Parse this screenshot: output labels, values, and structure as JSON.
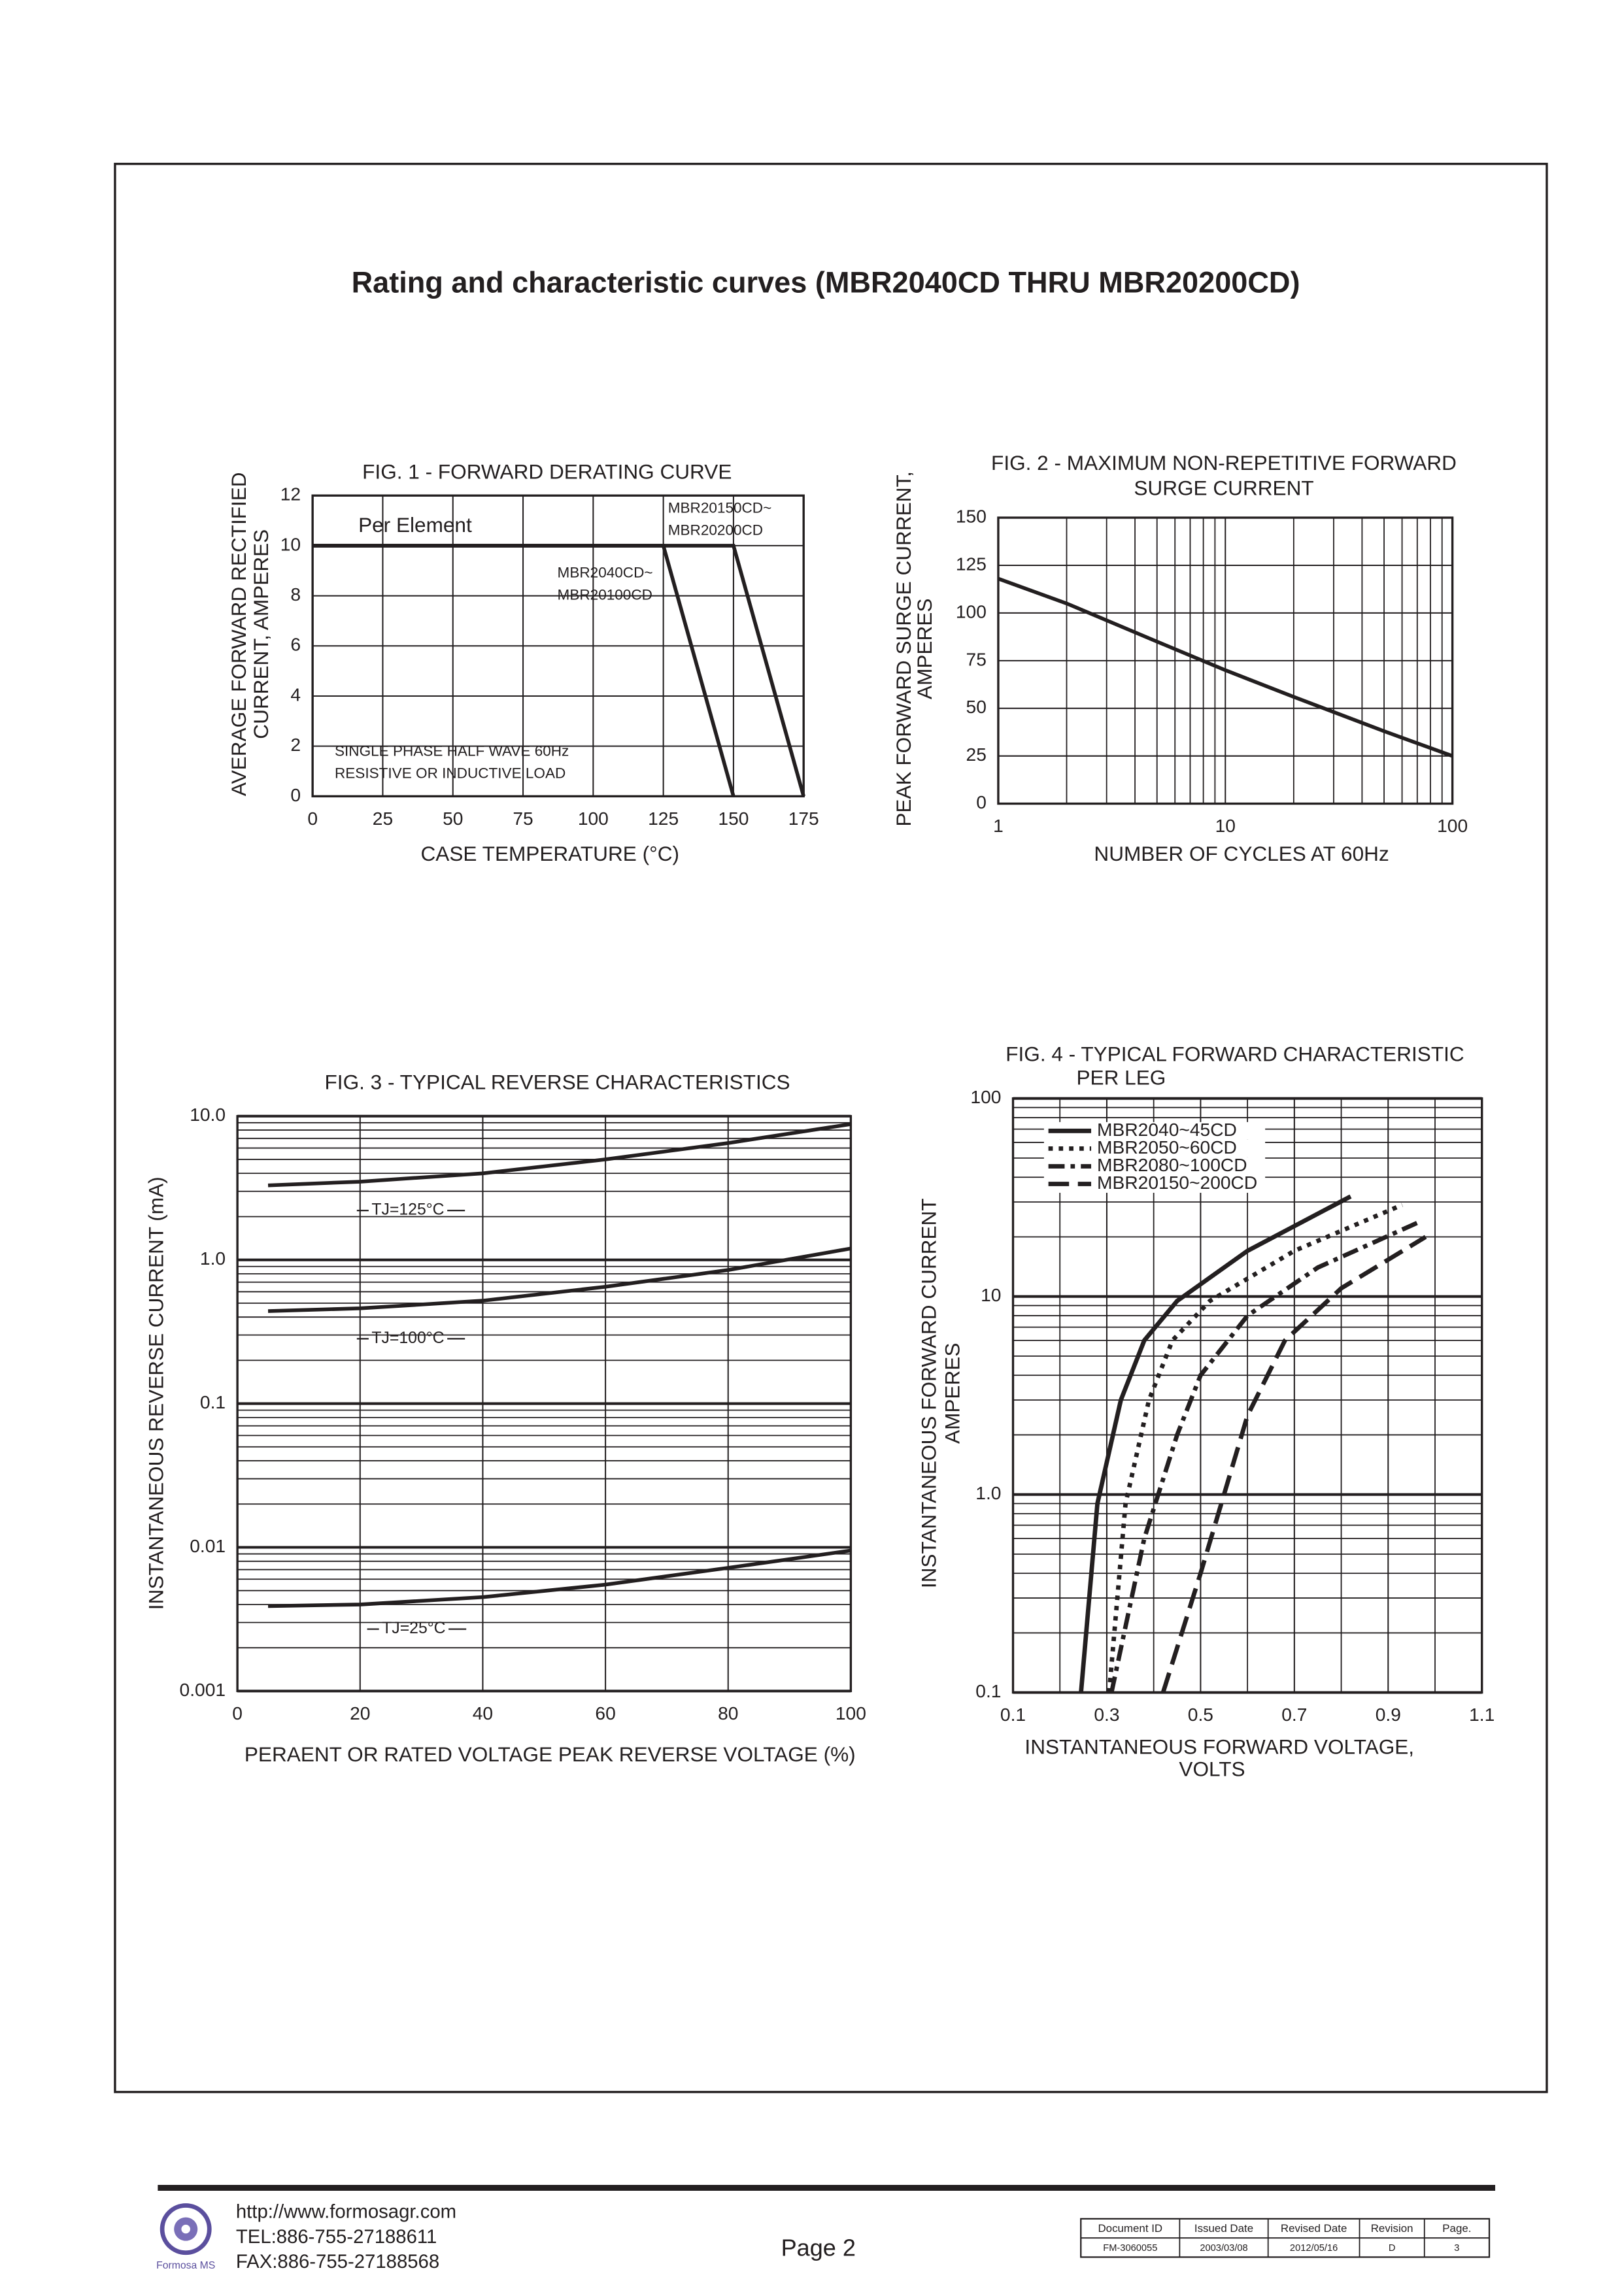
{
  "title": "Rating and characteristic curves (MBR2040CD THRU MBR20200CD)",
  "chart_data": [
    {
      "type": "line",
      "title": [
        "FIG. 1 - FORWARD DERATING CURVE"
      ],
      "xlabel": [
        "CASE TEMPERATURE (°C)"
      ],
      "ylabel": [
        "AVERAGE FORWARD RECTIFIED",
        "CURRENT, AMPERES"
      ],
      "xlim": [
        0,
        175
      ],
      "xticks": [
        0,
        25,
        50,
        75,
        100,
        125,
        150,
        175
      ],
      "ylim": [
        0,
        12
      ],
      "yticks": [
        0,
        2,
        4,
        6,
        8,
        10,
        12
      ],
      "xscale": "linear",
      "yscale": "linear",
      "grid": true,
      "annotations": [
        "Per Element",
        "SINGLE PHASE HALF WAVE 60Hz",
        "RESISTIVE OR INDUCTIVE LOAD"
      ],
      "series": [
        {
          "name_lines": [
            "MBR2040CD~",
            "MBR20100CD"
          ],
          "color": "#231f20",
          "dash": "solid",
          "x": [
            0,
            125,
            150
          ],
          "values": [
            10,
            10,
            0
          ]
        },
        {
          "name_lines": [
            "MBR20150CD~",
            "MBR20200CD"
          ],
          "color": "#231f20",
          "dash": "solid",
          "x": [
            0,
            150,
            175
          ],
          "values": [
            10,
            10,
            0
          ]
        }
      ]
    },
    {
      "type": "line",
      "title": [
        "FIG. 2 - MAXIMUM NON-REPETITIVE FORWARD",
        "SURGE CURRENT"
      ],
      "xlabel": [
        "NUMBER OF CYCLES AT 60Hz"
      ],
      "ylabel": [
        "PEAK FORWARD SURGE CURRENT,",
        "AMPERES"
      ],
      "xlim": [
        1,
        100
      ],
      "xticks": [
        1,
        10,
        100
      ],
      "ylim": [
        0,
        150
      ],
      "yticks": [
        0,
        25,
        50,
        75,
        100,
        125,
        150
      ],
      "xscale": "log",
      "yscale": "linear",
      "grid": true,
      "xgrid": [
        2,
        3,
        4,
        5,
        6,
        7,
        8,
        9,
        20,
        30,
        40,
        50,
        60,
        70,
        80,
        90
      ],
      "series": [
        {
          "color": "#231f20",
          "dash": "solid",
          "x": [
            1,
            2,
            5,
            10,
            20,
            50,
            100
          ],
          "values": [
            118,
            105,
            85,
            70,
            56,
            38,
            25
          ]
        }
      ]
    },
    {
      "type": "line",
      "title": [
        "FIG. 3 - TYPICAL REVERSE CHARACTERISTICS"
      ],
      "xlabel": [
        "PERAENT OR RATED VOLTAGE PEAK REVERSE VOLTAGE (%)"
      ],
      "ylabel": [
        "INSTANTANEOUS REVERSE CURRENT (mA)"
      ],
      "xlim": [
        0,
        100
      ],
      "xticks": [
        0,
        20,
        40,
        60,
        80,
        100
      ],
      "ylim": [
        0.001,
        10
      ],
      "yticks": [
        0.001,
        0.01,
        0.1,
        {
          "value": 1,
          "label": "1.0"
        },
        {
          "value": 10,
          "label": "10.0"
        }
      ],
      "xscale": "linear",
      "yscale": "log",
      "grid": true,
      "ygrid": [
        0.002,
        0.003,
        0.004,
        0.005,
        0.006,
        0.007,
        0.008,
        0.009,
        0.02,
        0.03,
        0.04,
        0.05,
        0.06,
        0.07,
        0.08,
        0.09,
        0.2,
        0.3,
        0.4,
        0.5,
        0.6,
        0.7,
        0.8,
        0.9,
        2,
        3,
        4,
        5,
        6,
        7,
        8,
        9
      ],
      "series": [
        {
          "name": "TJ=125°C",
          "color": "#231f20",
          "dash": "solid",
          "x": [
            5,
            20,
            40,
            60,
            80,
            100
          ],
          "values": [
            3.3,
            3.5,
            4.0,
            5.0,
            6.5,
            8.8
          ]
        },
        {
          "name": "TJ=100°C",
          "color": "#231f20",
          "dash": "solid",
          "x": [
            5,
            20,
            40,
            60,
            80,
            100
          ],
          "values": [
            0.44,
            0.46,
            0.52,
            0.65,
            0.85,
            1.2
          ]
        },
        {
          "name": "TJ=25°C",
          "color": "#231f20",
          "dash": "solid",
          "x": [
            5,
            20,
            40,
            60,
            80,
            100
          ],
          "values": [
            0.0039,
            0.004,
            0.0045,
            0.0055,
            0.0072,
            0.0095
          ]
        }
      ]
    },
    {
      "type": "line",
      "title": [
        "FIG. 4 - TYPICAL FORWARD CHARACTERISTIC",
        "PER LEG"
      ],
      "xlabel": [
        "INSTANTANEOUS FORWARD VOLTAGE,",
        "VOLTS"
      ],
      "ylabel": [
        "INSTANTANEOUS FORWARD CURRENT",
        "AMPERES"
      ],
      "xlim": [
        0.1,
        1.1
      ],
      "xticks": [
        0.1,
        0.3,
        0.5,
        0.7,
        0.9,
        1.1
      ],
      "ylim": [
        0.1,
        100
      ],
      "yticks": [
        0.1,
        {
          "value": 1,
          "label": "1.0"
        },
        10,
        100
      ],
      "xscale": "linear",
      "yscale": "log",
      "grid": true,
      "xgrid": [
        0.2,
        0.4,
        0.6,
        0.8,
        1.0
      ],
      "ygrid": [
        0.2,
        0.3,
        0.4,
        0.5,
        0.6,
        0.7,
        0.8,
        0.9,
        2,
        3,
        4,
        5,
        6,
        7,
        8,
        9,
        20,
        30,
        40,
        50,
        60,
        70,
        80,
        90
      ],
      "legend": "upper left",
      "series": [
        {
          "name": "MBR2040~45CD",
          "color": "#231f20",
          "dash": "solid",
          "x": [
            0.245,
            0.28,
            0.33,
            0.38,
            0.45,
            0.6,
            0.82
          ],
          "values": [
            0.1,
            0.9,
            3,
            6,
            9.5,
            17,
            32
          ]
        },
        {
          "name": "MBR2050~60CD",
          "color": "#231f20",
          "dash": "dotted",
          "x": [
            0.305,
            0.34,
            0.39,
            0.44,
            0.52,
            0.7,
            0.93
          ],
          "values": [
            0.1,
            0.9,
            3,
            6,
            9.5,
            17,
            29
          ]
        },
        {
          "name": "MBR2080~100CD",
          "color": "#231f20",
          "dash": "dashdot",
          "x": [
            0.31,
            0.38,
            0.45,
            0.5,
            0.6,
            0.75,
            0.97
          ],
          "values": [
            0.1,
            0.6,
            2,
            4,
            8,
            14,
            24
          ]
        },
        {
          "name": "MBR20150~200CD",
          "color": "#231f20",
          "dash": "dashed",
          "x": [
            0.42,
            0.5,
            0.55,
            0.6,
            0.68,
            0.8,
            0.98
          ],
          "values": [
            0.1,
            0.4,
            1,
            2.5,
            6,
            11,
            20
          ]
        }
      ]
    }
  ],
  "footer": {
    "logo_text": "Formosa MS",
    "url": "http://www.formosagr.com",
    "tel": "TEL:886-755-27188611",
    "fax": "FAX:886-755-27188568",
    "page": "Page 2",
    "table": {
      "headers": [
        "Document ID",
        "Issued Date",
        "Revised Date",
        "Revision",
        "Page."
      ],
      "rows": [
        [
          "FM-3060055",
          "2003/03/08",
          "2012/05/16",
          "D",
          "3"
        ]
      ]
    }
  }
}
